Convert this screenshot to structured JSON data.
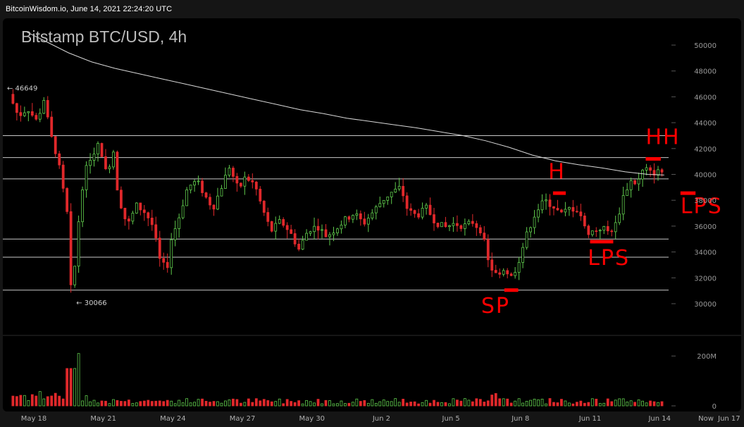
{
  "header": {
    "source": "BitcoinWisdom.io, June 14, 2021 22:24:20 UTC"
  },
  "chart_title": "Bitstamp BTC/USD, 4h",
  "chart_data": {
    "type": "candlestick",
    "title": "Bitstamp BTC/USD, 4h",
    "ylim": [
      28000,
      51000
    ],
    "y_ticks": [
      30000,
      32000,
      34000,
      36000,
      38000,
      40000,
      42000,
      44000,
      46000,
      48000,
      50000
    ],
    "x_ticks": [
      "May 18",
      "May 21",
      "May 24",
      "May 27",
      "May 30",
      "Jun 2",
      "Jun 5",
      "Jun 8",
      "Jun 11",
      "Jun 14",
      "Jun 17",
      "Now"
    ],
    "x_range_days": [
      17,
      47
    ],
    "high_marker": {
      "label": "← 46649",
      "value": 46649
    },
    "low_marker": {
      "label": "← 30066",
      "value": 30066
    },
    "volume": {
      "ticks": [
        "0",
        "200M"
      ],
      "max": 260
    },
    "horizontal_levels": [
      43000,
      41300,
      39650,
      35000,
      33600,
      31050
    ],
    "ma": [
      [
        17.7,
        51000
      ],
      [
        18.5,
        50300
      ],
      [
        19.5,
        49400
      ],
      [
        20.5,
        48700
      ],
      [
        21.5,
        48200
      ],
      [
        22.5,
        47800
      ],
      [
        23.5,
        47400
      ],
      [
        24.5,
        47000
      ],
      [
        25.5,
        46600
      ],
      [
        26.5,
        46200
      ],
      [
        27.5,
        45800
      ],
      [
        28.5,
        45400
      ],
      [
        29.5,
        45000
      ],
      [
        30.5,
        44700
      ],
      [
        31.5,
        44350
      ],
      [
        32.5,
        44100
      ],
      [
        33.5,
        43850
      ],
      [
        34.5,
        43600
      ],
      [
        35.5,
        43300
      ],
      [
        36.5,
        43000
      ],
      [
        37.5,
        42600
      ],
      [
        38.5,
        42100
      ],
      [
        39.5,
        41500
      ],
      [
        40.5,
        41050
      ],
      [
        41.5,
        40750
      ],
      [
        42.5,
        40500
      ],
      [
        43.5,
        40200
      ],
      [
        44.5,
        40000
      ],
      [
        45.2,
        39950
      ]
    ],
    "candle_anchors": [
      [
        17.1,
        46200
      ],
      [
        17.5,
        44500
      ],
      [
        17.9,
        45100
      ],
      [
        18.3,
        44100
      ],
      [
        18.6,
        45800
      ],
      [
        18.9,
        43000
      ],
      [
        19.2,
        41200
      ],
      [
        19.6,
        37000
      ],
      [
        19.8,
        30066
      ],
      [
        20.2,
        38500
      ],
      [
        20.5,
        41000
      ],
      [
        21.0,
        42400
      ],
      [
        21.3,
        40000
      ],
      [
        21.6,
        41800
      ],
      [
        21.8,
        38400
      ],
      [
        22.2,
        36000
      ],
      [
        22.6,
        37600
      ],
      [
        23.0,
        37000
      ],
      [
        23.3,
        36000
      ],
      [
        23.6,
        33400
      ],
      [
        23.9,
        32600
      ],
      [
        24.1,
        35000
      ],
      [
        24.4,
        36500
      ],
      [
        24.8,
        39000
      ],
      [
        25.2,
        39500
      ],
      [
        25.6,
        38200
      ],
      [
        25.9,
        37400
      ],
      [
        26.3,
        39200
      ],
      [
        26.6,
        40600
      ],
      [
        27.0,
        38800
      ],
      [
        27.3,
        39800
      ],
      [
        27.7,
        39200
      ],
      [
        28.0,
        37500
      ],
      [
        28.4,
        35600
      ],
      [
        28.8,
        36400
      ],
      [
        29.2,
        35600
      ],
      [
        29.6,
        34200
      ],
      [
        30.0,
        35700
      ],
      [
        30.4,
        36000
      ],
      [
        30.8,
        35200
      ],
      [
        31.2,
        35800
      ],
      [
        31.6,
        36500
      ],
      [
        32.0,
        37000
      ],
      [
        32.4,
        36200
      ],
      [
        32.8,
        37100
      ],
      [
        33.2,
        38000
      ],
      [
        33.6,
        38600
      ],
      [
        34.0,
        39000
      ],
      [
        34.3,
        37200
      ],
      [
        34.7,
        36800
      ],
      [
        35.1,
        37400
      ],
      [
        35.5,
        36300
      ],
      [
        35.9,
        35900
      ],
      [
        36.3,
        36200
      ],
      [
        36.7,
        36000
      ],
      [
        37.1,
        36300
      ],
      [
        37.5,
        35600
      ],
      [
        37.8,
        33000
      ],
      [
        38.1,
        32300
      ],
      [
        38.5,
        32700
      ],
      [
        38.8,
        32000
      ],
      [
        39.1,
        33400
      ],
      [
        39.4,
        35200
      ],
      [
        39.8,
        37000
      ],
      [
        40.2,
        38000
      ],
      [
        40.6,
        37500
      ],
      [
        40.9,
        36900
      ],
      [
        41.3,
        37400
      ],
      [
        41.7,
        37200
      ],
      [
        42.0,
        35500
      ],
      [
        42.3,
        35600
      ],
      [
        42.7,
        35900
      ],
      [
        43.0,
        35500
      ],
      [
        43.3,
        36200
      ],
      [
        43.6,
        38300
      ],
      [
        43.9,
        39500
      ],
      [
        44.2,
        39300
      ],
      [
        44.5,
        40500
      ],
      [
        44.8,
        40100
      ],
      [
        45.1,
        40200
      ]
    ]
  },
  "annotations": [
    {
      "id": "sp",
      "text": "SP",
      "value": 31050,
      "bar_day": [
        38.3,
        38.9
      ],
      "text_day": 37.3,
      "text_value": 29300
    },
    {
      "id": "h",
      "text": "H",
      "value": 38550,
      "bar_day": [
        40.4,
        40.95
      ],
      "text_day": 40.2,
      "text_value": 39680
    },
    {
      "id": "lps1",
      "text": "LPS",
      "value": 34800,
      "bar_day": [
        42.0,
        43.0
      ],
      "text_day": 41.9,
      "text_value": 33000
    },
    {
      "id": "hh",
      "text": "HH",
      "value": 41200,
      "bar_day": [
        44.4,
        45.05
      ],
      "text_day": 44.4,
      "text_value": 42350
    },
    {
      "id": "lps2",
      "text": "LPS",
      "value": 38550,
      "bar_day": [
        45.9,
        46.55
      ],
      "text_day": 45.9,
      "text_value": 37000
    }
  ],
  "colors": {
    "up": "#5fc94c",
    "down": "#e0282b",
    "grid": "#c8c8c8",
    "ma": "#d8d8d8",
    "marker": "#ff0000",
    "text": "#9a9a9a",
    "title": "#c0c0c0"
  }
}
